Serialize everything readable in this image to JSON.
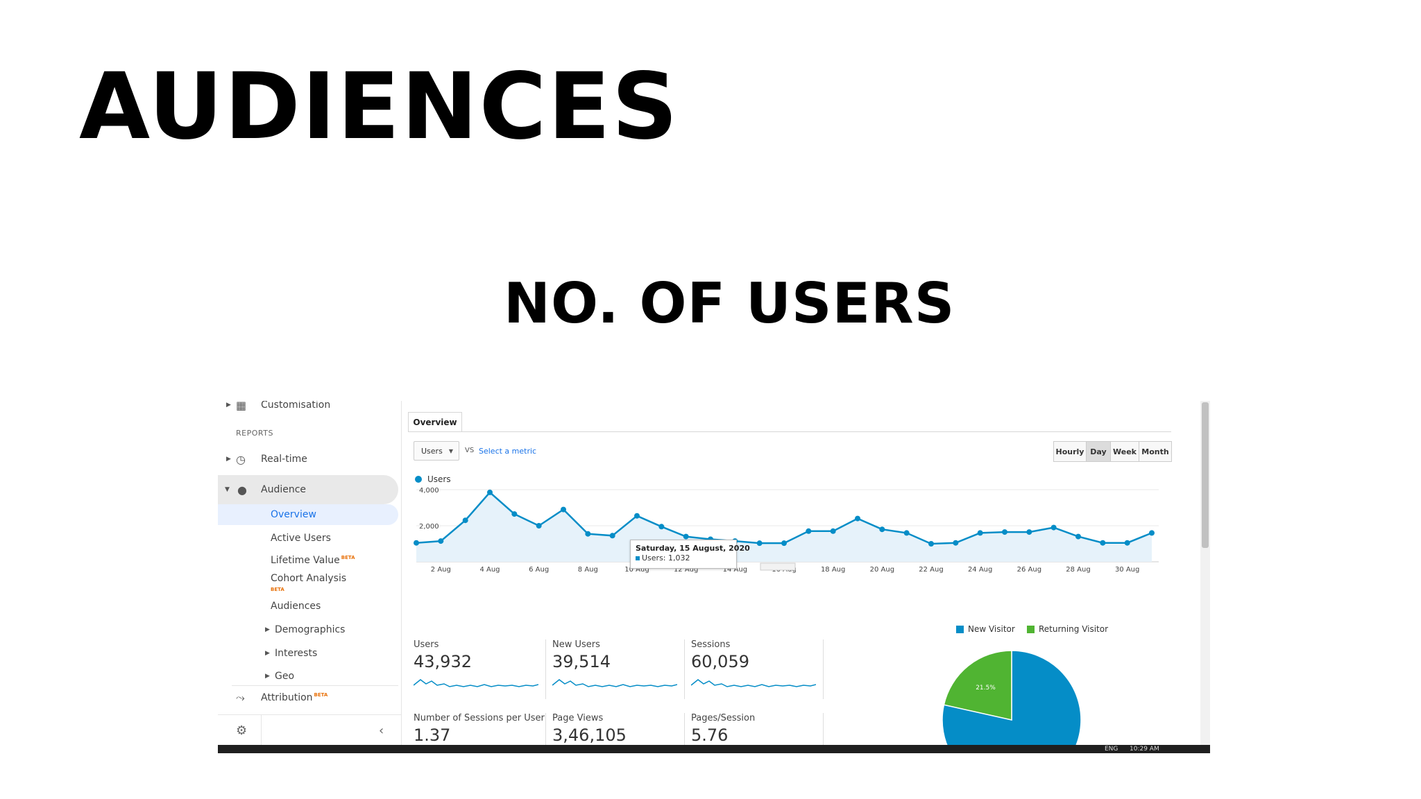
{
  "slide": {
    "title": "AUDIENCES",
    "subtitle": "NO. OF USERS"
  },
  "sidebar": {
    "customisation": "Customisation",
    "reports_heading": "REPORTS",
    "realtime": "Real-time",
    "audience": "Audience",
    "overview": "Overview",
    "active_users": "Active Users",
    "lifetime_value": "Lifetime Value",
    "cohort_analysis": "Cohort Analysis",
    "audiences": "Audiences",
    "demographics": "Demographics",
    "interests": "Interests",
    "geo": "Geo",
    "attribution": "Attribution",
    "beta": "BETA"
  },
  "toolbar": {
    "tab": "Overview",
    "metric": "Users",
    "vs": "VS",
    "select_metric": "Select a metric",
    "granularity": [
      "Hourly",
      "Day",
      "Week",
      "Month"
    ],
    "granularity_active": "Day"
  },
  "chart_data": {
    "type": "line",
    "series": [
      {
        "name": "Users",
        "x": [
          "1 Aug",
          "2 Aug",
          "3 Aug",
          "4 Aug",
          "5 Aug",
          "6 Aug",
          "7 Aug",
          "8 Aug",
          "9 Aug",
          "10 Aug",
          "11 Aug",
          "12 Aug",
          "13 Aug",
          "14 Aug",
          "15 Aug",
          "16 Aug",
          "17 Aug",
          "18 Aug",
          "19 Aug",
          "20 Aug",
          "21 Aug",
          "22 Aug",
          "23 Aug",
          "24 Aug",
          "25 Aug",
          "26 Aug",
          "27 Aug",
          "28 Aug",
          "29 Aug",
          "30 Aug",
          "31 Aug"
        ],
        "values": [
          1050,
          1150,
          2300,
          3850,
          2650,
          2000,
          2900,
          1550,
          1450,
          2550,
          1950,
          1400,
          1250,
          1150,
          1032,
          1032,
          1700,
          1700,
          2400,
          1800,
          1600,
          1000,
          1050,
          1600,
          1650,
          1650,
          1900,
          1400,
          1050,
          1050,
          1600
        ]
      }
    ],
    "xticks": [
      "2 Aug",
      "4 Aug",
      "6 Aug",
      "8 Aug",
      "10 Aug",
      "12 Aug",
      "14 Aug",
      "16 Aug",
      "18 Aug",
      "20 Aug",
      "22 Aug",
      "24 Aug",
      "26 Aug",
      "28 Aug",
      "30 Aug"
    ],
    "yticks": [
      "2,000",
      "4,000"
    ],
    "ylim": [
      0,
      4000
    ],
    "color": "#058dc7",
    "fill": "#e6f2fa",
    "legend": "top-left",
    "tooltip": {
      "date": "Saturday, 15 August, 2020",
      "line": "Users: 1,032"
    }
  },
  "stats": [
    {
      "label": "Users",
      "value": "43,932"
    },
    {
      "label": "New Users",
      "value": "39,514"
    },
    {
      "label": "Sessions",
      "value": "60,059"
    },
    {
      "label": "Number of Sessions per User",
      "value": "1.37"
    },
    {
      "label": "Page Views",
      "value": "3,46,105"
    },
    {
      "label": "Pages/Session",
      "value": "5.76"
    }
  ],
  "pie": {
    "legend": [
      {
        "label": "New Visitor",
        "color": "#058dc7"
      },
      {
        "label": "Returning Visitor",
        "color": "#50b432"
      }
    ],
    "slices": [
      {
        "name": "New Visitor",
        "percent": 78.5,
        "color": "#058dc7"
      },
      {
        "name": "Returning Visitor",
        "percent": 21.5,
        "color": "#50b432",
        "label": "21.5%"
      }
    ]
  },
  "taskbar": {
    "lang": "ENG",
    "time": "10:29 AM"
  }
}
